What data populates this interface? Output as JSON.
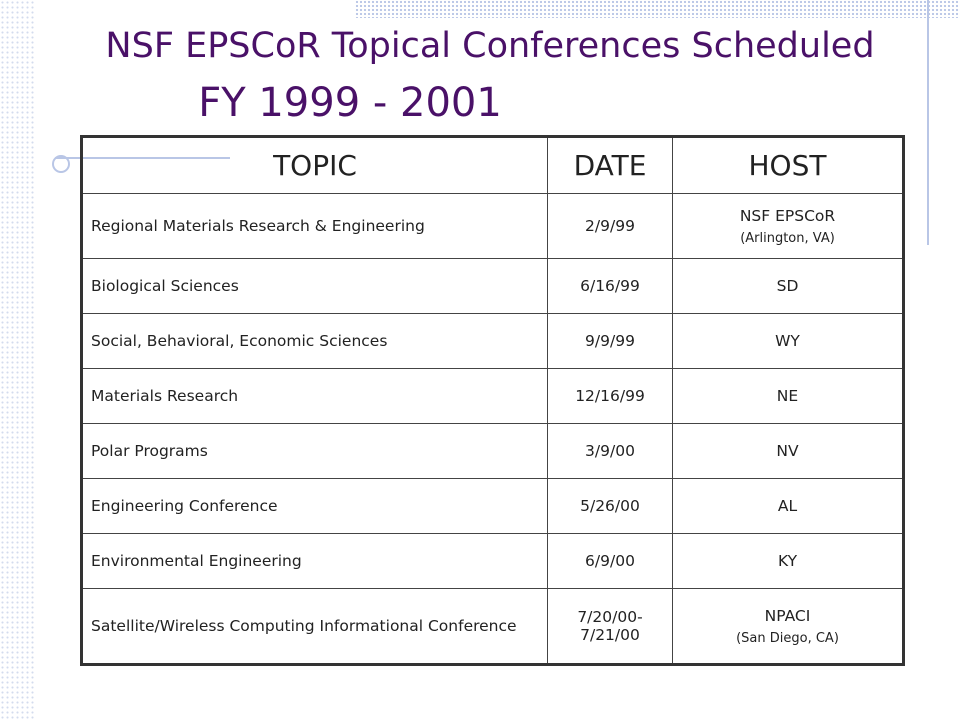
{
  "header": {
    "title_line1": "NSF EPSCoR Topical Conferences Scheduled",
    "title_line2": "FY 1999 - 2001"
  },
  "table": {
    "columns": [
      "TOPIC",
      "DATE",
      "HOST"
    ],
    "rows": [
      {
        "topic": "Regional Materials Research & Engineering",
        "date": "2/9/99",
        "host": "NSF EPSCoR",
        "host_note": "(Arlington, VA)"
      },
      {
        "topic": "Biological Sciences",
        "date": "6/16/99",
        "host": "SD"
      },
      {
        "topic": "Social, Behavioral, Economic Sciences",
        "date": "9/9/99",
        "host": "WY"
      },
      {
        "topic": "Materials Research",
        "date": "12/16/99",
        "host": "NE"
      },
      {
        "topic": "Polar Programs",
        "date": "3/9/00",
        "host": "NV"
      },
      {
        "topic": "Engineering Conference",
        "date": "5/26/00",
        "host": "AL"
      },
      {
        "topic": "Environmental Engineering",
        "date": "6/9/00",
        "host": "KY"
      },
      {
        "topic": "Satellite/Wireless Computing Informational Conference",
        "date": [
          "7/20/00-",
          "7/21/00"
        ],
        "host": "NPACI",
        "host_note": "(San Diego, CA)"
      }
    ]
  }
}
